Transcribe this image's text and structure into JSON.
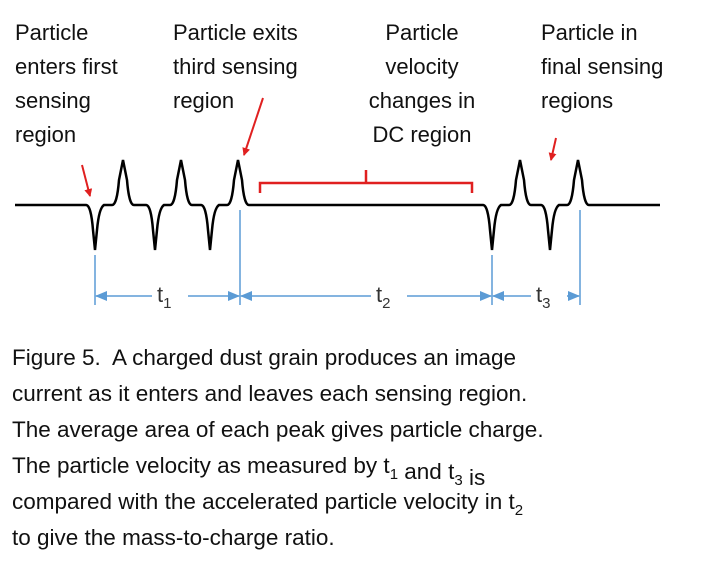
{
  "annotations": [
    {
      "lines": [
        "Particle",
        "enters first",
        "sensing",
        "region"
      ]
    },
    {
      "lines": [
        "Particle exits",
        "third sensing",
        "region"
      ]
    },
    {
      "lines": [
        "Particle",
        "velocity",
        "changes in",
        "DC region"
      ]
    },
    {
      "lines": [
        "Particle in",
        "final sensing",
        "regions"
      ]
    }
  ],
  "intervals": [
    {
      "symbol": "t",
      "sub": "1"
    },
    {
      "symbol": "t",
      "sub": "2"
    },
    {
      "symbol": "t",
      "sub": "3"
    }
  ],
  "caption": {
    "lines": [
      [
        "Figure 5.  A charged dust grain produces an image"
      ],
      [
        "current as it enters and leaves each sensing region."
      ],
      [
        "The average area of each peak gives particle charge."
      ],
      [
        "The particle velocity as measured by ",
        {
          "text": "t",
          "sub": "1"
        },
        " and ",
        {
          "text": "t",
          "sub": "3"
        },
        " is"
      ],
      [
        "compared with the accelerated particle velocity in ",
        {
          "text": "t",
          "sub": "2"
        }
      ],
      [
        "to give the mass-to-charge ratio."
      ]
    ]
  }
}
